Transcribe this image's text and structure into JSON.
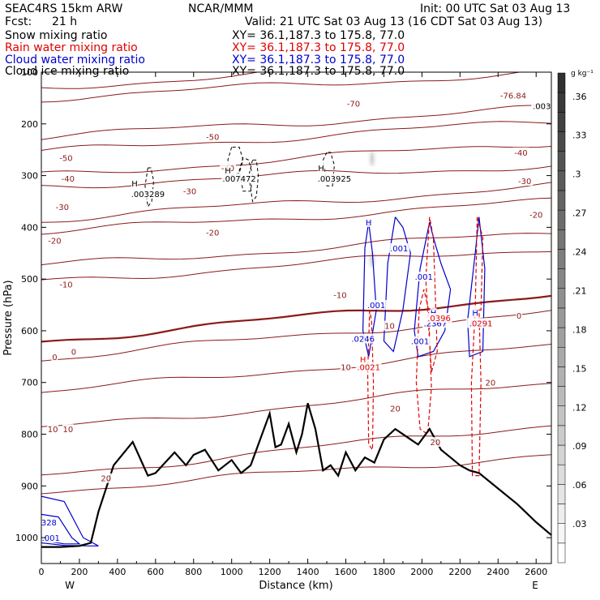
{
  "header": {
    "model": "SEAC4RS 15km ARW",
    "org": "NCAR/MMM",
    "init": "Init: 00 UTC Sat 03 Aug 13",
    "fcst_label": "Fcst:",
    "fcst_value": "21 h",
    "valid": "Valid: 21 UTC Sat 03 Aug 13 (16 CDT Sat 03 Aug 13)",
    "fields": [
      {
        "name": "Snow mixing ratio",
        "xy": "XY=  36.1,187.3 to 175.8, 77.0",
        "color": "#000000"
      },
      {
        "name": "Rain water mixing ratio",
        "xy": "XY=  36.1,187.3 to 175.8, 77.0",
        "color": "#e00000"
      },
      {
        "name": "Cloud water mixing ratio",
        "xy": "XY=  36.1,187.3 to 175.8, 77.0",
        "color": "#0000cc"
      },
      {
        "name": "Cloud ice mixing ratio",
        "xy": "XY=  36.1,187.3 to 175.8, 77.0",
        "color": "#000000"
      }
    ]
  },
  "chart_data": {
    "type": "cross-section",
    "xlabel": "Distance (km)",
    "ylabel": "Pressure (hPa)",
    "xlim": [
      0,
      2680
    ],
    "ylim": [
      1050,
      100
    ],
    "x_ticks": [
      0,
      200,
      400,
      600,
      800,
      1000,
      1200,
      1400,
      1600,
      1800,
      2000,
      2200,
      2400,
      2600
    ],
    "y_ticks": [
      100,
      200,
      300,
      400,
      500,
      600,
      700,
      800,
      900,
      1000
    ],
    "x_end_labels": {
      "left": "W",
      "right": "E"
    },
    "colorbar": {
      "unit": "g kg⁻¹",
      "ticks": [
        ".03",
        ".06",
        ".09",
        ".12",
        ".15",
        ".18",
        ".21",
        ".24",
        ".27",
        ".3",
        ".33",
        ".36"
      ]
    },
    "colors": {
      "temperature": "#8b1a1a",
      "terrain": "#000000",
      "rain": "#e00000",
      "cloud_water": "#0000cc",
      "snow": "#000000"
    },
    "terrain": {
      "x": [
        0,
        100,
        200,
        260,
        300,
        380,
        480,
        560,
        600,
        700,
        760,
        800,
        860,
        930,
        1000,
        1050,
        1100,
        1150,
        1200,
        1230,
        1260,
        1300,
        1340,
        1370,
        1400,
        1440,
        1480,
        1520,
        1560,
        1600,
        1650,
        1700,
        1750,
        1800,
        1860,
        1920,
        1980,
        2040,
        2100,
        2150,
        2200,
        2250,
        2300,
        2400,
        2500,
        2600,
        2680
      ],
      "p": [
        1018,
        1018,
        1016,
        1010,
        950,
        860,
        815,
        880,
        875,
        835,
        860,
        840,
        830,
        870,
        850,
        875,
        860,
        810,
        760,
        825,
        820,
        780,
        835,
        800,
        740,
        790,
        870,
        860,
        880,
        835,
        870,
        845,
        855,
        810,
        790,
        805,
        820,
        790,
        830,
        845,
        860,
        870,
        875,
        905,
        935,
        970,
        995
      ]
    },
    "isotherms": [
      {
        "label": "-70",
        "p_start": 130,
        "p_end": 70
      },
      {
        "label": "-60",
        "p_start": 150,
        "p_end": 100
      },
      {
        "label": "-50",
        "p_start": 225,
        "p_end": 170
      },
      {
        "label": "-40",
        "p_start": 255,
        "p_end": 195
      },
      {
        "label": "-30",
        "p_start": 300,
        "p_end": 235
      },
      {
        "label": "-30",
        "p_start": 320,
        "p_end": 280
      },
      {
        "label": "-20",
        "p_start": 385,
        "p_end": 320
      },
      {
        "label": "-20",
        "p_start": 410,
        "p_end": 350
      },
      {
        "label": "-10",
        "p_start": 475,
        "p_end": 410
      },
      {
        "label": "-10",
        "p_start": 505,
        "p_end": 440
      },
      {
        "label": "0",
        "p_start": 620,
        "p_end": 530
      },
      {
        "label": "0",
        "p_start": 655,
        "p_end": 565
      },
      {
        "label": "10",
        "p_start": 720,
        "p_end": 630
      },
      {
        "label": "10",
        "p_start": 790,
        "p_end": 700
      },
      {
        "label": "20",
        "p_start": 880,
        "p_end": 780
      },
      {
        "label": "20",
        "p_start": 910,
        "p_end": 840
      }
    ],
    "contour_labels": [
      {
        "text": "-70",
        "x": 1640,
        "p": 160,
        "color": "#8b1a1a"
      },
      {
        "text": "-76.84",
        "x": 2480,
        "p": 145,
        "color": "#8b1a1a"
      },
      {
        "text": "-50",
        "x": 130,
        "p": 265,
        "color": "#8b1a1a"
      },
      {
        "text": "-50",
        "x": 900,
        "p": 225,
        "color": "#8b1a1a"
      },
      {
        "text": "-40",
        "x": 140,
        "p": 305,
        "color": "#8b1a1a"
      },
      {
        "text": "-40",
        "x": 980,
        "p": 285,
        "color": "#8b1a1a"
      },
      {
        "text": "-40",
        "x": 2520,
        "p": 255,
        "color": "#8b1a1a"
      },
      {
        "text": "-30",
        "x": 110,
        "p": 360,
        "color": "#8b1a1a"
      },
      {
        "text": "-30",
        "x": 780,
        "p": 330,
        "color": "#8b1a1a"
      },
      {
        "text": "-30",
        "x": 2540,
        "p": 310,
        "color": "#8b1a1a"
      },
      {
        "text": "-20",
        "x": 70,
        "p": 425,
        "color": "#8b1a1a"
      },
      {
        "text": "-20",
        "x": 900,
        "p": 410,
        "color": "#8b1a1a"
      },
      {
        "text": "-20",
        "x": 2600,
        "p": 375,
        "color": "#8b1a1a"
      },
      {
        "text": "-10",
        "x": 130,
        "p": 510,
        "color": "#8b1a1a"
      },
      {
        "text": "-10",
        "x": 1570,
        "p": 530,
        "color": "#8b1a1a"
      },
      {
        "text": "0",
        "x": 70,
        "p": 650,
        "color": "#8b1a1a"
      },
      {
        "text": "0",
        "x": 170,
        "p": 640,
        "color": "#8b1a1a"
      },
      {
        "text": "0",
        "x": 2510,
        "p": 570,
        "color": "#8b1a1a"
      },
      {
        "text": "10",
        "x": 1600,
        "p": 670,
        "color": "#8b1a1a"
      },
      {
        "text": "10",
        "x": 60,
        "p": 790,
        "color": "#8b1a1a"
      },
      {
        "text": "10",
        "x": 140,
        "p": 790,
        "color": "#8b1a1a"
      },
      {
        "text": "10",
        "x": 1830,
        "p": 590,
        "color": "#8b1a1a"
      },
      {
        "text": "20",
        "x": 1860,
        "p": 750,
        "color": "#8b1a1a"
      },
      {
        "text": "20",
        "x": 2360,
        "p": 700,
        "color": "#8b1a1a"
      },
      {
        "text": "20",
        "x": 2070,
        "p": 815,
        "color": "#8b1a1a"
      },
      {
        "text": "20",
        "x": 340,
        "p": 885,
        "color": "#8b1a1a"
      },
      {
        "text": "H",
        "x": 490,
        "p": 315,
        "color": "#000000"
      },
      {
        "text": ".003289",
        "x": 560,
        "p": 335,
        "color": "#000000"
      },
      {
        "text": "H",
        "x": 980,
        "p": 290,
        "color": "#000000"
      },
      {
        "text": ".007472",
        "x": 1040,
        "p": 305,
        "color": "#000000"
      },
      {
        "text": "H",
        "x": 1470,
        "p": 285,
        "color": "#000000"
      },
      {
        "text": ".003925",
        "x": 1540,
        "p": 305,
        "color": "#000000"
      },
      {
        "text": ".003",
        "x": 2630,
        "p": 165,
        "color": "#000000"
      },
      {
        "text": ".001",
        "x": 1880,
        "p": 440,
        "color": "#0000cc"
      },
      {
        "text": ".001",
        "x": 2010,
        "p": 495,
        "color": "#0000cc"
      },
      {
        "text": ".001",
        "x": 1760,
        "p": 550,
        "color": "#0000cc"
      },
      {
        "text": ".0246",
        "x": 1690,
        "p": 615,
        "color": "#0000cc"
      },
      {
        "text": ".001",
        "x": 1990,
        "p": 620,
        "color": "#0000cc"
      },
      {
        "text": ".2367",
        "x": 2070,
        "p": 585,
        "color": "#0000cc"
      },
      {
        "text": ".0779",
        "x": 2300,
        "p": 585,
        "color": "#0000cc"
      },
      {
        "text": "H",
        "x": 2060,
        "p": 565,
        "color": "#0000cc"
      },
      {
        "text": "H",
        "x": 2280,
        "p": 565,
        "color": "#0000cc"
      },
      {
        "text": ".0396",
        "x": 2090,
        "p": 575,
        "color": "#e00000"
      },
      {
        "text": ".0291",
        "x": 2310,
        "p": 585,
        "color": "#e00000"
      },
      {
        "text": "H",
        "x": 1690,
        "p": 655,
        "color": "#e00000"
      },
      {
        "text": ".0021",
        "x": 1720,
        "p": 670,
        "color": "#e00000"
      },
      {
        "text": "H",
        "x": 1720,
        "p": 390,
        "color": "#0000cc"
      },
      {
        "text": "328",
        "x": 40,
        "p": 970,
        "color": "#0000cc"
      },
      {
        "text": ".001",
        "x": 50,
        "p": 1000,
        "color": "#0000cc"
      }
    ],
    "cloud_water_contours": [
      {
        "x": [
          1720,
          1700,
          1690,
          1720,
          1760,
          1740,
          1720
        ],
        "p": [
          390,
          440,
          600,
          650,
          560,
          450,
          390
        ]
      },
      {
        "x": [
          1860,
          1820,
          1800,
          1850,
          1900,
          1940,
          1900,
          1860
        ],
        "p": [
          380,
          470,
          620,
          640,
          560,
          450,
          400,
          380
        ]
      },
      {
        "x": [
          2040,
          1990,
          1960,
          1980,
          2060,
          2120,
          2150,
          2100,
          2060,
          2040
        ],
        "p": [
          390,
          480,
          600,
          650,
          640,
          600,
          520,
          470,
          420,
          390
        ]
      },
      {
        "x": [
          2300,
          2280,
          2240,
          2250,
          2320,
          2330,
          2300
        ],
        "p": [
          380,
          450,
          580,
          650,
          640,
          480,
          380
        ]
      },
      {
        "x": [
          0,
          120,
          220,
          300,
          260,
          120,
          0
        ],
        "p": [
          920,
          930,
          1000,
          1016,
          1016,
          1015,
          1010
        ]
      },
      {
        "x": [
          0,
          90,
          160,
          200,
          120,
          0
        ],
        "p": [
          955,
          960,
          1000,
          1012,
          1012,
          1005
        ]
      }
    ],
    "rain_contours": [
      {
        "x": [
          1725,
          1715,
          1720,
          1740,
          1745,
          1735,
          1725
        ],
        "p": [
          560,
          680,
          820,
          830,
          700,
          580,
          560
        ]
      },
      {
        "x": [
          1985,
          1970,
          1990,
          2030,
          2050,
          2035,
          2010,
          1985
        ],
        "p": [
          560,
          700,
          790,
          800,
          710,
          560,
          520,
          560
        ]
      },
      {
        "x": [
          2040,
          2020,
          2050,
          2080,
          2060,
          2040
        ],
        "p": [
          380,
          500,
          680,
          640,
          420,
          380
        ]
      },
      {
        "x": [
          2280,
          2260,
          2265,
          2300,
          2310,
          2300,
          2280
        ],
        "p": [
          560,
          700,
          880,
          880,
          700,
          560,
          560
        ]
      },
      {
        "x": [
          2290,
          2280,
          2310,
          2320,
          2290
        ],
        "p": [
          380,
          560,
          560,
          420,
          380
        ]
      }
    ],
    "snow_contours": [
      {
        "x": [
          1000,
          980,
          1000,
          1040,
          1060,
          1040,
          1000
        ],
        "p": [
          245,
          270,
          300,
          295,
          270,
          245,
          245
        ]
      },
      {
        "x": [
          1060,
          1040,
          1060,
          1100,
          1110,
          1090,
          1060
        ],
        "p": [
          265,
          290,
          330,
          330,
          300,
          270,
          265
        ]
      },
      {
        "x": [
          1110,
          1090,
          1110,
          1130,
          1140,
          1130,
          1110
        ],
        "p": [
          270,
          300,
          350,
          340,
          300,
          270,
          270
        ]
      },
      {
        "x": [
          560,
          545,
          560,
          580,
          590,
          575,
          560
        ],
        "p": [
          285,
          320,
          360,
          350,
          310,
          285,
          285
        ]
      },
      {
        "x": [
          1500,
          1480,
          1500,
          1530,
          1540,
          1520,
          1500
        ],
        "p": [
          255,
          270,
          320,
          320,
          280,
          255,
          255
        ]
      }
    ],
    "ice_column": {
      "x": 1738,
      "p_top": 250,
      "p_bottom": 480
    }
  }
}
